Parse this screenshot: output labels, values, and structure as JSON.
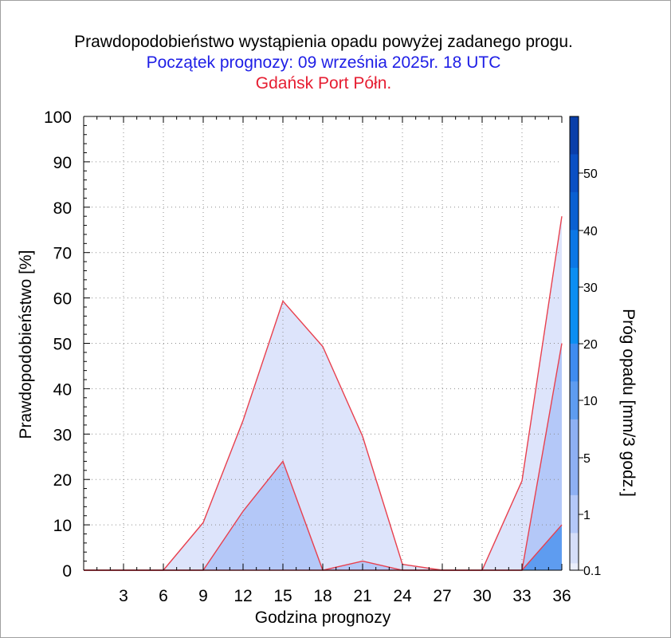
{
  "header": {
    "title": "Prawdopodobieństwo wystąpienia opadu powyżej zadanego progu.",
    "subtitle": "Początek prognozy: 09 września 2025r. 18 UTC",
    "station": "Gdańsk Port Półn."
  },
  "colors": {
    "subtitle": "#1e1ee6",
    "station": "#e61e32",
    "outline": "#e8404e",
    "grid": "#8c8c8c"
  },
  "chart_data": {
    "type": "area",
    "xlabel": "Godzina prognozy",
    "ylabel": "Prawdopodobieństwo [%]",
    "colorbar_label": "Próg opadu [mm/3 godz.]",
    "xlim": [
      0,
      36
    ],
    "ylim": [
      0,
      100
    ],
    "x_ticks": [
      3,
      6,
      9,
      12,
      15,
      18,
      21,
      24,
      27,
      30,
      33,
      36
    ],
    "y_ticks": [
      0,
      10,
      20,
      30,
      40,
      50,
      60,
      70,
      80,
      90,
      100
    ],
    "grid": true,
    "x": [
      0,
      3,
      6,
      9,
      12,
      15,
      18,
      21,
      24,
      27,
      30,
      33,
      36
    ],
    "series": [
      {
        "name": "0.1",
        "color": "#dde4fb",
        "values": [
          0,
          0,
          0,
          10.5,
          33,
          59.3,
          49.3,
          29.5,
          1.3,
          0,
          0,
          19.7,
          78
        ]
      },
      {
        "name": "1",
        "color": "#b4c8f8",
        "values": [
          0,
          0,
          0,
          0,
          13,
          24,
          0,
          2,
          0,
          0,
          0,
          0,
          50
        ]
      },
      {
        "name": "5",
        "color": "#5e9cf0",
        "values": [
          0,
          0,
          0,
          0,
          0,
          0,
          0,
          0,
          0,
          0,
          0,
          0,
          10
        ]
      }
    ],
    "colorbar": {
      "labels": [
        "0.1",
        "1",
        "5",
        "10",
        "20",
        "30",
        "40",
        "50"
      ],
      "bands": [
        {
          "from": 0.1,
          "to": 1,
          "color": "#eaeefd"
        },
        {
          "from": 1,
          "to": 5,
          "color": "#d5def9"
        },
        {
          "from": 5,
          "to": 10,
          "color": "#b4c8f8"
        },
        {
          "from": 10,
          "to": 20,
          "color": "#8eb0f3"
        },
        {
          "from": 20,
          "to": 25,
          "color": "#5e9cf0"
        },
        {
          "from": 25,
          "to": 30,
          "color": "#3f8cf0"
        },
        {
          "from": 30,
          "to": 40,
          "color": "#0b8ef2"
        },
        {
          "from": 40,
          "to": 45,
          "color": "#0b77e6"
        },
        {
          "from": 45,
          "to": 50,
          "color": "#0a60d2"
        },
        {
          "from": 50,
          "to": 55,
          "color": "#0a50c4"
        },
        {
          "from": 55,
          "to": 60,
          "color": "#0a3faa"
        }
      ]
    }
  }
}
